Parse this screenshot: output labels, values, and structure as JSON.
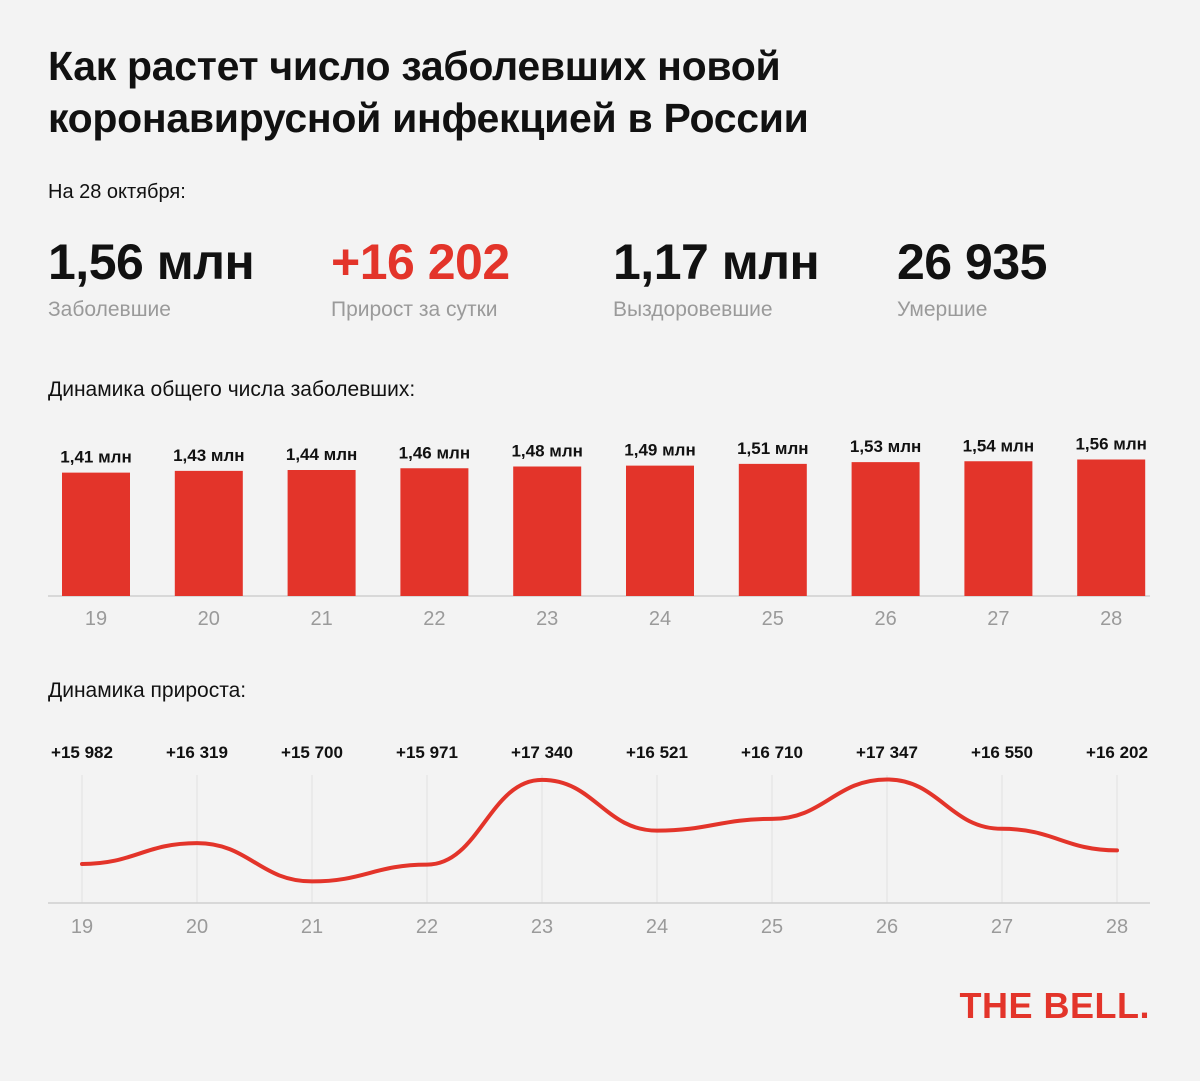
{
  "title": {
    "line1": "Как растет число заболевших новой",
    "line2": "коронавирусной инфекцией в России"
  },
  "as_of": "На 28 октября:",
  "stats": [
    {
      "value": "1,56 млн",
      "label": "Заболевшие",
      "color": "#111111"
    },
    {
      "value": "+16 202",
      "label": "Прирост за сутки",
      "color": "#e3342a"
    },
    {
      "value": "1,17 млн",
      "label": "Выздоровевшие",
      "color": "#111111"
    },
    {
      "value": "26 935",
      "label": "Умершие",
      "color": "#111111"
    }
  ],
  "colors": {
    "accent": "#e3342a",
    "muted": "#9a9a9a",
    "axis": "#cfcfcf"
  },
  "brand": "THE BELL.",
  "chart_data": [
    {
      "type": "bar",
      "title": "Динамика общего числа заболевших:",
      "categories": [
        "19",
        "20",
        "21",
        "22",
        "23",
        "24",
        "25",
        "26",
        "27",
        "28"
      ],
      "values": [
        1.41,
        1.43,
        1.44,
        1.46,
        1.48,
        1.49,
        1.51,
        1.53,
        1.54,
        1.56
      ],
      "data_labels": [
        "1,41 млн",
        "1,43 млн",
        "1,44 млн",
        "1,46 млн",
        "1,48 млн",
        "1,49 млн",
        "1,51 млн",
        "1,53 млн",
        "1,54 млн",
        "1,56 млн"
      ],
      "ylim": [
        0,
        1.6
      ]
    },
    {
      "type": "line",
      "title": "Динамика прироста:",
      "categories": [
        "19",
        "20",
        "21",
        "22",
        "23",
        "24",
        "25",
        "26",
        "27",
        "28"
      ],
      "values": [
        15982,
        16319,
        15700,
        15971,
        17340,
        16521,
        16710,
        17347,
        16550,
        16202
      ],
      "data_labels": [
        "+15 982",
        "+16 319",
        "+15 700",
        "+15 971",
        "+17 340",
        "+16 521",
        "+16 710",
        "+17 347",
        "+16 550",
        "+16 202"
      ],
      "ylim": [
        15400,
        17500
      ],
      "grid": true
    }
  ]
}
